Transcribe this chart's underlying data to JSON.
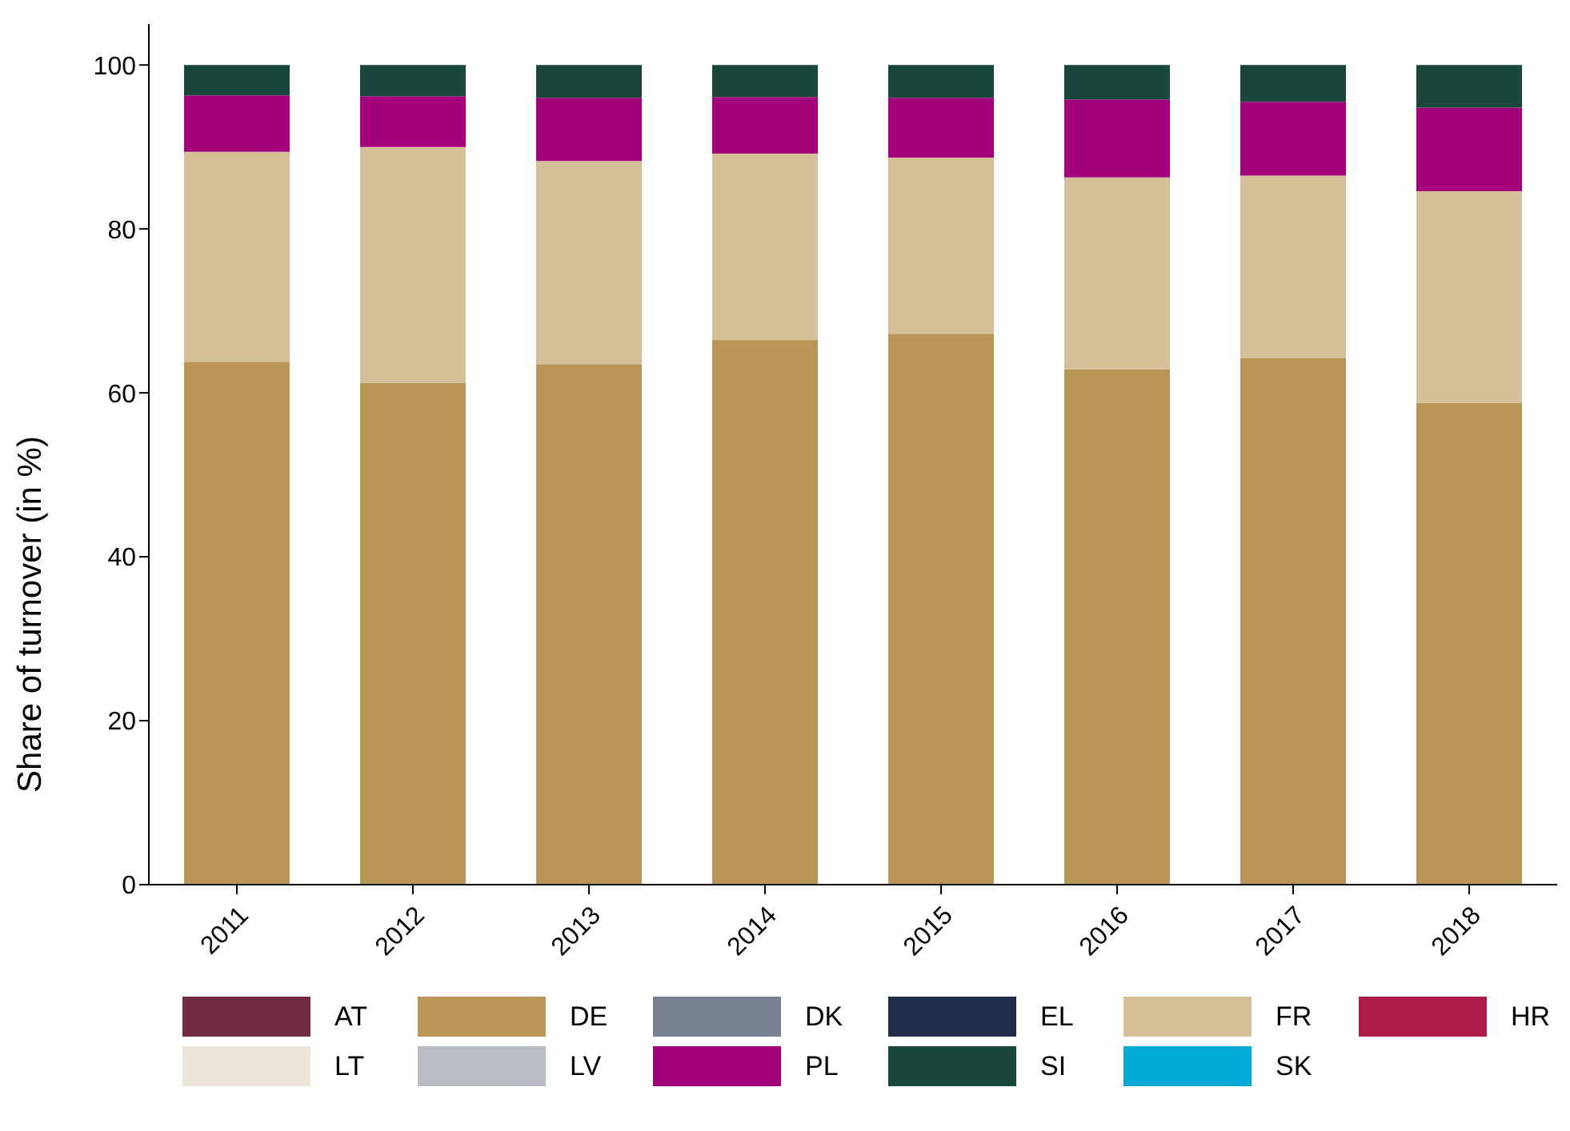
{
  "chart_data": {
    "type": "bar",
    "stacked": true,
    "ylabel": "Share of turnover (in %)",
    "categories": [
      "2011",
      "2012",
      "2013",
      "2014",
      "2015",
      "2016",
      "2017",
      "2018"
    ],
    "ylim": [
      0,
      105
    ],
    "yticks": [
      0,
      20,
      40,
      60,
      80,
      100
    ],
    "legend": "bottom",
    "series": [
      {
        "name": "AT",
        "color": "#722b40",
        "values": [
          0,
          0,
          0,
          0,
          0,
          0,
          0,
          0
        ]
      },
      {
        "name": "DE",
        "color": "#b99658",
        "values": [
          63.8,
          61.2,
          63.5,
          66.5,
          67.2,
          62.9,
          64.2,
          58.8
        ]
      },
      {
        "name": "DK",
        "color": "#76808e",
        "values": [
          0,
          0,
          0,
          0,
          0,
          0,
          0,
          0
        ]
      },
      {
        "name": "EL",
        "color": "#212e4a",
        "values": [
          0,
          0,
          0,
          0,
          0,
          0,
          0,
          0
        ]
      },
      {
        "name": "FR",
        "color": "#d4bf98",
        "values": [
          25.6,
          28.8,
          24.8,
          22.7,
          21.5,
          23.4,
          22.3,
          25.8
        ]
      },
      {
        "name": "HR",
        "color": "#ad1b49",
        "values": [
          0,
          0,
          0,
          0,
          0,
          0,
          0,
          0
        ]
      },
      {
        "name": "LT",
        "color": "#ede5da",
        "values": [
          0,
          0,
          0,
          0,
          0,
          0,
          0,
          0
        ]
      },
      {
        "name": "LV",
        "color": "#b8bcc4",
        "values": [
          0,
          0,
          0,
          0,
          0,
          0,
          0,
          0
        ]
      },
      {
        "name": "PL",
        "color": "#a3007c",
        "values": [
          6.9,
          6.2,
          7.7,
          6.9,
          7.3,
          9.5,
          9.0,
          10.2
        ]
      },
      {
        "name": "SI",
        "color": "#18463c",
        "values": [
          3.7,
          3.8,
          4.0,
          3.9,
          4.0,
          4.2,
          4.5,
          5.2
        ]
      },
      {
        "name": "SK",
        "color": "#00aad4",
        "values": [
          0,
          0,
          0,
          0,
          0,
          0,
          0,
          0
        ]
      }
    ]
  }
}
